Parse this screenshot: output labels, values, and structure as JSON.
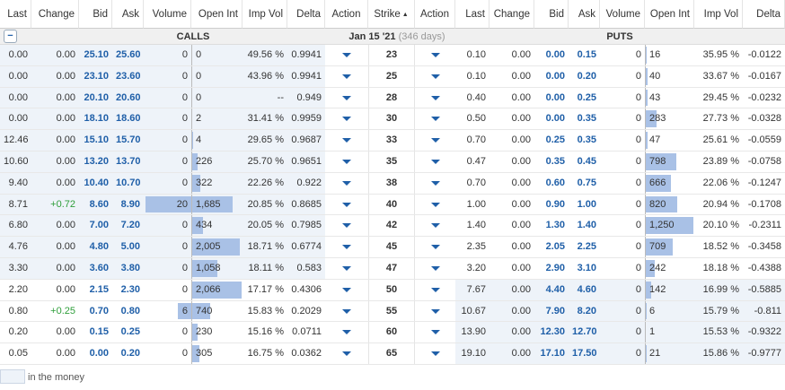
{
  "header": {
    "columns": [
      "Last",
      "Change",
      "Bid",
      "Ask",
      "Volume",
      "Open Int",
      "Imp Vol",
      "Delta",
      "Action",
      "Strike",
      "Action",
      "Last",
      "Change",
      "Bid",
      "Ask",
      "Volume",
      "Open Int",
      "Imp Vol",
      "Delta"
    ]
  },
  "subheader": {
    "calls": "CALLS",
    "expiry": "Jan 15 '21",
    "days": "(346 days)",
    "puts": "PUTS"
  },
  "rows": [
    {
      "strike": "23",
      "itm": "calls",
      "calls": [
        "0.00",
        "0.00",
        "25.10",
        "25.60",
        "0",
        "0",
        "49.56 %",
        "0.9941"
      ],
      "puts": [
        "0.10",
        "0.00",
        "0.00",
        "0.15",
        "0",
        "16",
        "35.95 %",
        "-0.0122"
      ]
    },
    {
      "strike": "25",
      "itm": "calls",
      "calls": [
        "0.00",
        "0.00",
        "23.10",
        "23.60",
        "0",
        "0",
        "43.96 %",
        "0.9941"
      ],
      "puts": [
        "0.10",
        "0.00",
        "0.00",
        "0.20",
        "0",
        "40",
        "33.67 %",
        "-0.0167"
      ]
    },
    {
      "strike": "28",
      "itm": "calls",
      "calls": [
        "0.00",
        "0.00",
        "20.10",
        "20.60",
        "0",
        "0",
        "--",
        "0.949"
      ],
      "puts": [
        "0.40",
        "0.00",
        "0.00",
        "0.25",
        "0",
        "43",
        "29.45 %",
        "-0.0232"
      ]
    },
    {
      "strike": "30",
      "itm": "calls",
      "calls": [
        "0.00",
        "0.00",
        "18.10",
        "18.60",
        "0",
        "2",
        "31.41 %",
        "0.9959"
      ],
      "puts": [
        "0.50",
        "0.00",
        "0.00",
        "0.35",
        "0",
        "283",
        "27.73 %",
        "-0.0328"
      ]
    },
    {
      "strike": "33",
      "itm": "calls",
      "calls": [
        "12.46",
        "0.00",
        "15.10",
        "15.70",
        "0",
        "4",
        "29.65 %",
        "0.9687"
      ],
      "puts": [
        "0.70",
        "0.00",
        "0.25",
        "0.35",
        "0",
        "47",
        "25.61 %",
        "-0.0559"
      ]
    },
    {
      "strike": "35",
      "itm": "calls",
      "calls": [
        "10.60",
        "0.00",
        "13.20",
        "13.70",
        "0",
        "226",
        "25.70 %",
        "0.9651"
      ],
      "puts": [
        "0.47",
        "0.00",
        "0.35",
        "0.45",
        "0",
        "798",
        "23.89 %",
        "-0.0758"
      ]
    },
    {
      "strike": "38",
      "itm": "calls",
      "calls": [
        "9.40",
        "0.00",
        "10.40",
        "10.70",
        "0",
        "322",
        "22.26 %",
        "0.922"
      ],
      "puts": [
        "0.70",
        "0.00",
        "0.60",
        "0.75",
        "0",
        "666",
        "22.06 %",
        "-0.1247"
      ]
    },
    {
      "strike": "40",
      "itm": "calls",
      "calls": [
        "8.71",
        "+0.72",
        "8.60",
        "8.90",
        "20",
        "1,685",
        "20.85 %",
        "0.8685"
      ],
      "puts": [
        "1.00",
        "0.00",
        "0.90",
        "1.00",
        "0",
        "820",
        "20.94 %",
        "-0.1708"
      ]
    },
    {
      "strike": "42",
      "itm": "calls",
      "calls": [
        "6.80",
        "0.00",
        "7.00",
        "7.20",
        "0",
        "434",
        "20.05 %",
        "0.7985"
      ],
      "puts": [
        "1.40",
        "0.00",
        "1.30",
        "1.40",
        "0",
        "1,250",
        "20.10 %",
        "-0.2311"
      ]
    },
    {
      "strike": "45",
      "itm": "calls",
      "calls": [
        "4.76",
        "0.00",
        "4.80",
        "5.00",
        "0",
        "2,005",
        "18.71 %",
        "0.6774"
      ],
      "puts": [
        "2.35",
        "0.00",
        "2.05",
        "2.25",
        "0",
        "709",
        "18.52 %",
        "-0.3458"
      ]
    },
    {
      "strike": "47",
      "itm": "calls",
      "calls": [
        "3.30",
        "0.00",
        "3.60",
        "3.80",
        "0",
        "1,058",
        "18.11 %",
        "0.583"
      ],
      "puts": [
        "3.20",
        "0.00",
        "2.90",
        "3.10",
        "0",
        "242",
        "18.18 %",
        "-0.4388"
      ]
    },
    {
      "strike": "50",
      "itm": "puts",
      "calls": [
        "2.20",
        "0.00",
        "2.15",
        "2.30",
        "0",
        "2,066",
        "17.17 %",
        "0.4306"
      ],
      "puts": [
        "7.67",
        "0.00",
        "4.40",
        "4.60",
        "0",
        "142",
        "16.99 %",
        "-0.5885"
      ]
    },
    {
      "strike": "55",
      "itm": "puts",
      "calls": [
        "0.80",
        "+0.25",
        "0.70",
        "0.80",
        "6",
        "740",
        "15.83 %",
        "0.2029"
      ],
      "puts": [
        "10.67",
        "0.00",
        "7.90",
        "8.20",
        "0",
        "6",
        "15.79 %",
        "-0.811"
      ]
    },
    {
      "strike": "60",
      "itm": "puts",
      "calls": [
        "0.20",
        "0.00",
        "0.15",
        "0.25",
        "0",
        "230",
        "15.16 %",
        "0.0711"
      ],
      "puts": [
        "13.90",
        "0.00",
        "12.30",
        "12.70",
        "0",
        "1",
        "15.53 %",
        "-0.9322"
      ]
    },
    {
      "strike": "65",
      "itm": "puts",
      "calls": [
        "0.05",
        "0.00",
        "0.00",
        "0.20",
        "0",
        "305",
        "16.75 %",
        "0.0362"
      ],
      "puts": [
        "19.10",
        "0.00",
        "17.10",
        "17.50",
        "0",
        "21",
        "15.86 %",
        "-0.9777"
      ]
    }
  ],
  "legend": "in the money"
}
